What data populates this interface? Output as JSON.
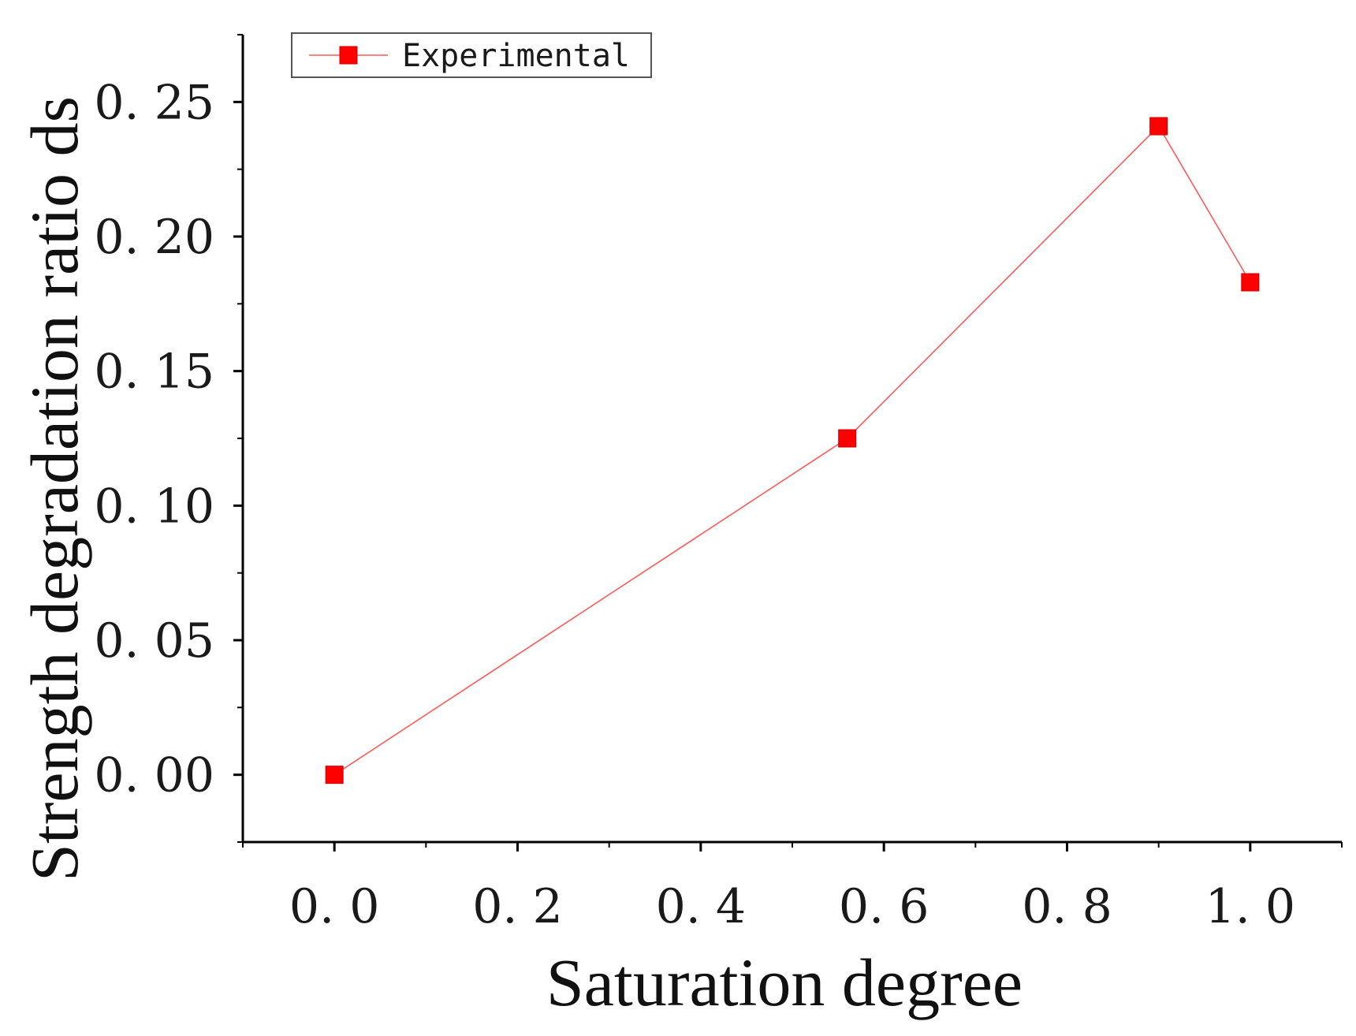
{
  "chart_data": {
    "type": "line",
    "xlabel": "Saturation degree",
    "ylabel": "Strength degradation ratio ds",
    "xlim": [
      -0.1,
      1.1
    ],
    "ylim": [
      -0.025,
      0.275
    ],
    "xticks": [
      0.0,
      0.2,
      0.4,
      0.6,
      0.8,
      1.0
    ],
    "xtick_labels": [
      "0. 0",
      "0. 2",
      "0. 4",
      "0. 6",
      "0. 8",
      "1. 0"
    ],
    "yticks": [
      0.0,
      0.05,
      0.1,
      0.15,
      0.2,
      0.25
    ],
    "ytick_labels": [
      "0. 00",
      "0. 05",
      "0. 10",
      "0. 15",
      "0. 20",
      "0. 25"
    ],
    "grid": false,
    "legend": "top-left",
    "series": [
      {
        "name": "Experimental",
        "color": "#ff0000",
        "marker": "square",
        "x": [
          0.0,
          0.56,
          0.9,
          1.0
        ],
        "y": [
          0.0,
          0.125,
          0.241,
          0.183
        ]
      }
    ]
  }
}
